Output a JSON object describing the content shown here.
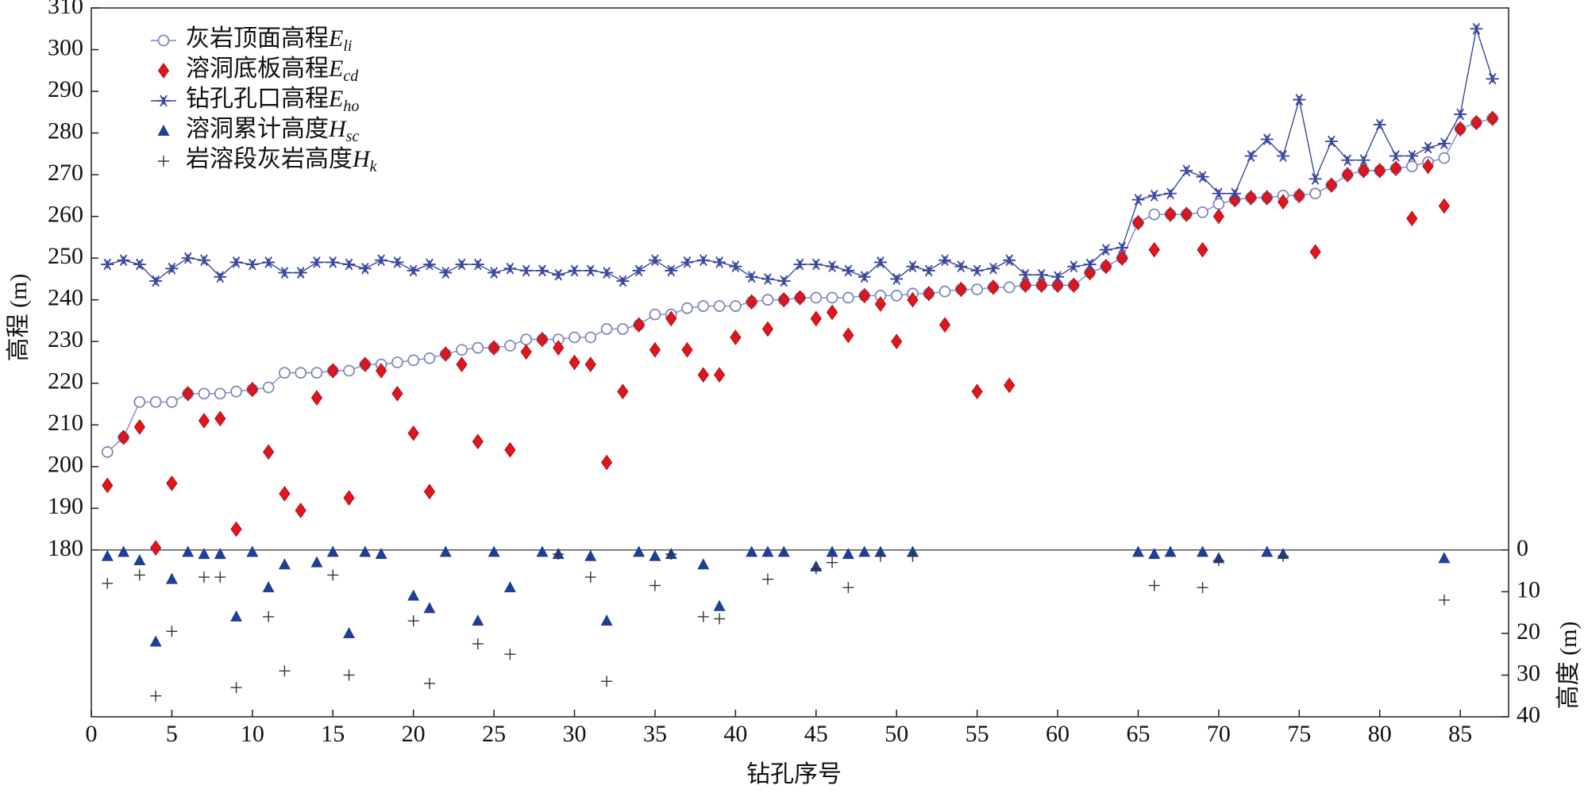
{
  "chart_data": {
    "type": "scatter",
    "xlabel": "钻孔序号",
    "ylabel": "高程 (m)",
    "y2label": "高度 (m)",
    "x": [
      1,
      2,
      3,
      4,
      5,
      6,
      7,
      8,
      9,
      10,
      11,
      12,
      13,
      14,
      15,
      16,
      17,
      18,
      19,
      20,
      21,
      22,
      23,
      24,
      25,
      26,
      27,
      28,
      29,
      30,
      31,
      32,
      33,
      34,
      35,
      36,
      37,
      38,
      39,
      40,
      41,
      42,
      43,
      44,
      45,
      46,
      47,
      48,
      49,
      50,
      51,
      52,
      53,
      54,
      55,
      56,
      57,
      58,
      59,
      60,
      61,
      62,
      63,
      64,
      65,
      66,
      67,
      68,
      69,
      70,
      71,
      72,
      73,
      74,
      75,
      76,
      77,
      78,
      79,
      80,
      81,
      82,
      83,
      84,
      85,
      86,
      87
    ],
    "xlim": [
      0,
      88
    ],
    "xticks": [
      0,
      5,
      10,
      15,
      20,
      25,
      30,
      35,
      40,
      45,
      50,
      55,
      60,
      65,
      70,
      75,
      80,
      85
    ],
    "ylim": [
      140,
      310
    ],
    "yticks": [
      180,
      190,
      200,
      210,
      220,
      230,
      240,
      250,
      260,
      270,
      280,
      290,
      300,
      310
    ],
    "y2lim": [
      40,
      -130
    ],
    "y2ticks": [
      0,
      10,
      20,
      30,
      40
    ],
    "series": [
      {
        "name": "灰岩顶面高程",
        "symbol": "E",
        "subscript": "li",
        "marker": "circle",
        "line": true,
        "color": "#7f88bf",
        "values": [
          203.5,
          207,
          215.5,
          215.5,
          215.5,
          217.5,
          217.5,
          217.5,
          218,
          218.5,
          219,
          222.5,
          222.5,
          222.5,
          223,
          223,
          224.5,
          224.5,
          225,
          225.5,
          226,
          227,
          228,
          228.5,
          228.5,
          229,
          230.5,
          230.5,
          230.5,
          231,
          231,
          233,
          233,
          234,
          236.5,
          236.5,
          238,
          238.5,
          238.5,
          238.5,
          239.5,
          240,
          240,
          240.5,
          240.5,
          240.5,
          240.5,
          241,
          241,
          241,
          241.5,
          241.5,
          242,
          242.5,
          242.5,
          243,
          243,
          243.5,
          243.5,
          243.5,
          243.5,
          246.5,
          248,
          250,
          258.5,
          260.5,
          260.5,
          260.5,
          261,
          263,
          264,
          264.5,
          264.5,
          265,
          265,
          265.5,
          267.5,
          270,
          271,
          271,
          271.5,
          272,
          273,
          274,
          281,
          282.5,
          283.5
        ]
      },
      {
        "name": "溶洞底板高程",
        "symbol": "E",
        "subscript": "cd",
        "marker": "diamond",
        "line": false,
        "color": "#e0161c",
        "values": [
          195.5,
          207,
          209.5,
          180.5,
          196,
          217.5,
          211,
          211.5,
          185,
          218.5,
          203.5,
          193.5,
          189.5,
          216.5,
          223,
          192.5,
          224.5,
          223,
          217.5,
          208,
          194,
          227,
          224.5,
          206,
          228.5,
          204,
          227.5,
          230.5,
          228.5,
          225,
          224.5,
          201,
          218,
          234,
          228,
          235.5,
          228,
          222,
          222,
          231,
          239.5,
          233,
          240,
          240.5,
          235.5,
          237,
          231.5,
          241,
          239,
          230,
          240,
          241.5,
          234,
          242.5,
          218,
          243,
          219.5,
          243.5,
          243.5,
          243.5,
          243.5,
          246.5,
          248,
          250,
          258.5,
          252,
          260.5,
          260.5,
          252,
          260,
          264,
          264.5,
          264.5,
          263.5,
          265,
          251.5,
          267.5,
          270,
          271,
          271,
          271.5,
          259.5,
          272,
          262.5,
          281,
          282.5,
          283.5
        ]
      },
      {
        "name": "钻孔孔口高程",
        "symbol": "E",
        "subscript": "ho",
        "marker": "star",
        "line": true,
        "color": "#3a479e",
        "values": [
          248.5,
          249.5,
          248.5,
          244.5,
          247.5,
          250,
          249.5,
          245.5,
          249,
          248.5,
          249,
          246.5,
          246.5,
          249,
          249,
          248.5,
          247.5,
          249.5,
          249,
          247,
          248.5,
          246.5,
          248.5,
          248.5,
          246.5,
          247.5,
          247,
          247,
          246,
          247,
          247,
          246.5,
          244.5,
          247,
          249.5,
          247,
          249,
          249.5,
          249,
          248,
          245.5,
          245,
          244.5,
          248.5,
          248.5,
          248,
          247,
          245.5,
          249,
          245,
          248,
          247,
          249.5,
          248,
          247,
          247.5,
          249.5,
          246,
          246,
          245.5,
          248,
          248.5,
          252,
          252.5,
          264,
          265,
          265.5,
          271,
          269.5,
          265.5,
          265.5,
          274.5,
          278.5,
          274.5,
          288,
          269,
          278,
          273.5,
          273.5,
          282,
          274.5,
          274.5,
          276.5,
          277.5,
          284.5,
          305,
          293
        ]
      },
      {
        "name": "溶洞累计高度",
        "symbol": "H",
        "subscript": "sc",
        "marker": "triangle",
        "line": false,
        "axis": "y2",
        "color": "#1d3f95",
        "values": [
          1.5,
          0.5,
          2.5,
          22,
          7,
          0.5,
          1,
          1,
          16,
          0.5,
          9,
          3.5,
          null,
          3,
          0.5,
          20,
          0.5,
          1,
          null,
          11,
          14,
          0.5,
          null,
          17,
          0.5,
          9,
          null,
          0.5,
          1,
          null,
          1.5,
          17,
          null,
          0.5,
          1.5,
          1,
          null,
          3.5,
          13.5,
          null,
          0.5,
          0.5,
          0.5,
          null,
          4,
          0.5,
          1,
          0.5,
          0.5,
          null,
          0.5,
          null,
          null,
          null,
          null,
          null,
          null,
          null,
          null,
          null,
          null,
          null,
          null,
          null,
          0.5,
          1,
          0.5,
          null,
          0.5,
          2,
          null,
          null,
          0.5,
          1,
          null,
          null,
          null,
          null,
          null,
          null,
          null,
          null,
          null,
          2,
          null,
          null,
          null
        ]
      },
      {
        "name": "岩溶段灰岩高度",
        "symbol": "H",
        "subscript": "k",
        "marker": "plus",
        "line": false,
        "axis": "y2",
        "color": "#333333",
        "values": [
          8,
          null,
          6,
          35,
          19.5,
          null,
          6.5,
          6.5,
          33,
          null,
          16,
          29,
          null,
          null,
          6,
          30,
          null,
          null,
          null,
          17,
          32,
          null,
          null,
          22.5,
          null,
          25,
          null,
          null,
          1,
          null,
          6.5,
          31.5,
          null,
          null,
          8.5,
          1,
          null,
          16,
          16.5,
          null,
          null,
          7,
          null,
          null,
          4.5,
          3,
          9,
          null,
          1.5,
          null,
          1.5,
          null,
          null,
          null,
          null,
          null,
          null,
          null,
          null,
          null,
          null,
          null,
          null,
          null,
          null,
          8.5,
          null,
          null,
          9,
          2.5,
          null,
          null,
          null,
          1.5,
          null,
          null,
          null,
          null,
          null,
          null,
          null,
          null,
          null,
          12,
          null,
          null,
          null
        ]
      }
    ]
  }
}
